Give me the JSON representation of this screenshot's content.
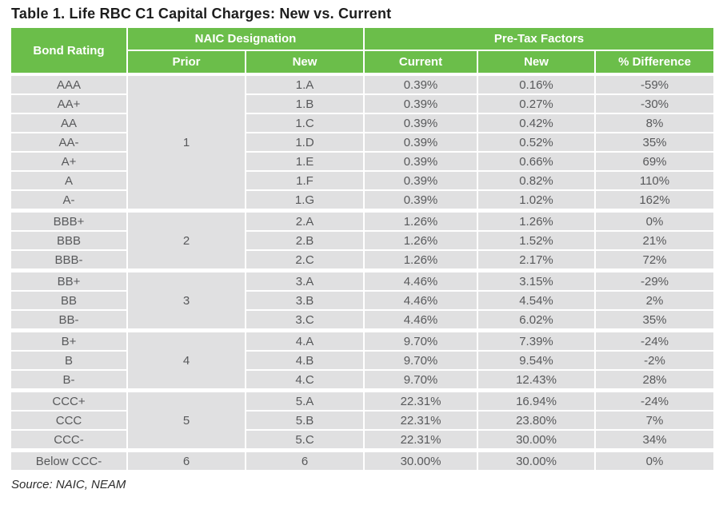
{
  "title": "Table 1. Life RBC C1 Capital Charges: New vs. Current",
  "source": "Source: NAIC, NEAM",
  "colors": {
    "header_green": "#6BBE4A",
    "cell_gray": "#E0E0E1",
    "cell_text": "#58595B",
    "header_text": "#FFFFFF"
  },
  "table": {
    "headers": {
      "bond_rating": "Bond Rating",
      "naic_designation": "NAIC Designation",
      "pretax_factors": "Pre-Tax Factors",
      "prior": "Prior",
      "naic_new": "New",
      "current": "Current",
      "factor_new": "New",
      "pct_difference": "% Difference"
    },
    "groups": [
      {
        "prior": "1",
        "rows": [
          {
            "rating": "AAA",
            "naic_new": "1.A",
            "current": "0.39%",
            "new": "0.16%",
            "diff": "-59%"
          },
          {
            "rating": "AA+",
            "naic_new": "1.B",
            "current": "0.39%",
            "new": "0.27%",
            "diff": "-30%"
          },
          {
            "rating": "AA",
            "naic_new": "1.C",
            "current": "0.39%",
            "new": "0.42%",
            "diff": "8%"
          },
          {
            "rating": "AA-",
            "naic_new": "1.D",
            "current": "0.39%",
            "new": "0.52%",
            "diff": "35%"
          },
          {
            "rating": "A+",
            "naic_new": "1.E",
            "current": "0.39%",
            "new": "0.66%",
            "diff": "69%"
          },
          {
            "rating": "A",
            "naic_new": "1.F",
            "current": "0.39%",
            "new": "0.82%",
            "diff": "110%"
          },
          {
            "rating": "A-",
            "naic_new": "1.G",
            "current": "0.39%",
            "new": "1.02%",
            "diff": "162%"
          }
        ]
      },
      {
        "prior": "2",
        "rows": [
          {
            "rating": "BBB+",
            "naic_new": "2.A",
            "current": "1.26%",
            "new": "1.26%",
            "diff": "0%"
          },
          {
            "rating": "BBB",
            "naic_new": "2.B",
            "current": "1.26%",
            "new": "1.52%",
            "diff": "21%"
          },
          {
            "rating": "BBB-",
            "naic_new": "2.C",
            "current": "1.26%",
            "new": "2.17%",
            "diff": "72%"
          }
        ]
      },
      {
        "prior": "3",
        "rows": [
          {
            "rating": "BB+",
            "naic_new": "3.A",
            "current": "4.46%",
            "new": "3.15%",
            "diff": "-29%"
          },
          {
            "rating": "BB",
            "naic_new": "3.B",
            "current": "4.46%",
            "new": "4.54%",
            "diff": "2%"
          },
          {
            "rating": "BB-",
            "naic_new": "3.C",
            "current": "4.46%",
            "new": "6.02%",
            "diff": "35%"
          }
        ]
      },
      {
        "prior": "4",
        "rows": [
          {
            "rating": "B+",
            "naic_new": "4.A",
            "current": "9.70%",
            "new": "7.39%",
            "diff": "-24%"
          },
          {
            "rating": "B",
            "naic_new": "4.B",
            "current": "9.70%",
            "new": "9.54%",
            "diff": "-2%"
          },
          {
            "rating": "B-",
            "naic_new": "4.C",
            "current": "9.70%",
            "new": "12.43%",
            "diff": "28%"
          }
        ]
      },
      {
        "prior": "5",
        "rows": [
          {
            "rating": "CCC+",
            "naic_new": "5.A",
            "current": "22.31%",
            "new": "16.94%",
            "diff": "-24%"
          },
          {
            "rating": "CCC",
            "naic_new": "5.B",
            "current": "22.31%",
            "new": "23.80%",
            "diff": "7%"
          },
          {
            "rating": "CCC-",
            "naic_new": "5.C",
            "current": "22.31%",
            "new": "30.00%",
            "diff": "34%"
          }
        ]
      },
      {
        "prior": "6",
        "rows": [
          {
            "rating": "Below CCC-",
            "naic_new": "6",
            "current": "30.00%",
            "new": "30.00%",
            "diff": "0%"
          }
        ]
      }
    ]
  },
  "chart_data": {
    "type": "table",
    "title": "Table 1. Life RBC C1 Capital Charges: New vs. Current",
    "columns": [
      "Bond Rating",
      "NAIC Designation Prior",
      "NAIC Designation New",
      "Pre-Tax Factors Current",
      "Pre-Tax Factors New",
      "% Difference"
    ],
    "rows": [
      [
        "AAA",
        "1",
        "1.A",
        "0.39%",
        "0.16%",
        "-59%"
      ],
      [
        "AA+",
        "1",
        "1.B",
        "0.39%",
        "0.27%",
        "-30%"
      ],
      [
        "AA",
        "1",
        "1.C",
        "0.39%",
        "0.42%",
        "8%"
      ],
      [
        "AA-",
        "1",
        "1.D",
        "0.39%",
        "0.52%",
        "35%"
      ],
      [
        "A+",
        "1",
        "1.E",
        "0.39%",
        "0.66%",
        "69%"
      ],
      [
        "A",
        "1",
        "1.F",
        "0.39%",
        "0.82%",
        "110%"
      ],
      [
        "A-",
        "1",
        "1.G",
        "0.39%",
        "1.02%",
        "162%"
      ],
      [
        "BBB+",
        "2",
        "2.A",
        "1.26%",
        "1.26%",
        "0%"
      ],
      [
        "BBB",
        "2",
        "2.B",
        "1.26%",
        "1.52%",
        "21%"
      ],
      [
        "BBB-",
        "2",
        "2.C",
        "1.26%",
        "2.17%",
        "72%"
      ],
      [
        "BB+",
        "3",
        "3.A",
        "4.46%",
        "3.15%",
        "-29%"
      ],
      [
        "BB",
        "3",
        "3.B",
        "4.46%",
        "4.54%",
        "2%"
      ],
      [
        "BB-",
        "3",
        "3.C",
        "4.46%",
        "6.02%",
        "35%"
      ],
      [
        "B+",
        "4",
        "4.A",
        "9.70%",
        "7.39%",
        "-24%"
      ],
      [
        "B",
        "4",
        "4.B",
        "9.70%",
        "9.54%",
        "-2%"
      ],
      [
        "B-",
        "4",
        "4.C",
        "9.70%",
        "12.43%",
        "28%"
      ],
      [
        "CCC+",
        "5",
        "5.A",
        "22.31%",
        "16.94%",
        "-24%"
      ],
      [
        "CCC",
        "5",
        "5.B",
        "22.31%",
        "23.80%",
        "7%"
      ],
      [
        "CCC-",
        "5",
        "5.C",
        "22.31%",
        "30.00%",
        "34%"
      ],
      [
        "Below CCC-",
        "6",
        "6",
        "30.00%",
        "30.00%",
        "0%"
      ]
    ]
  }
}
